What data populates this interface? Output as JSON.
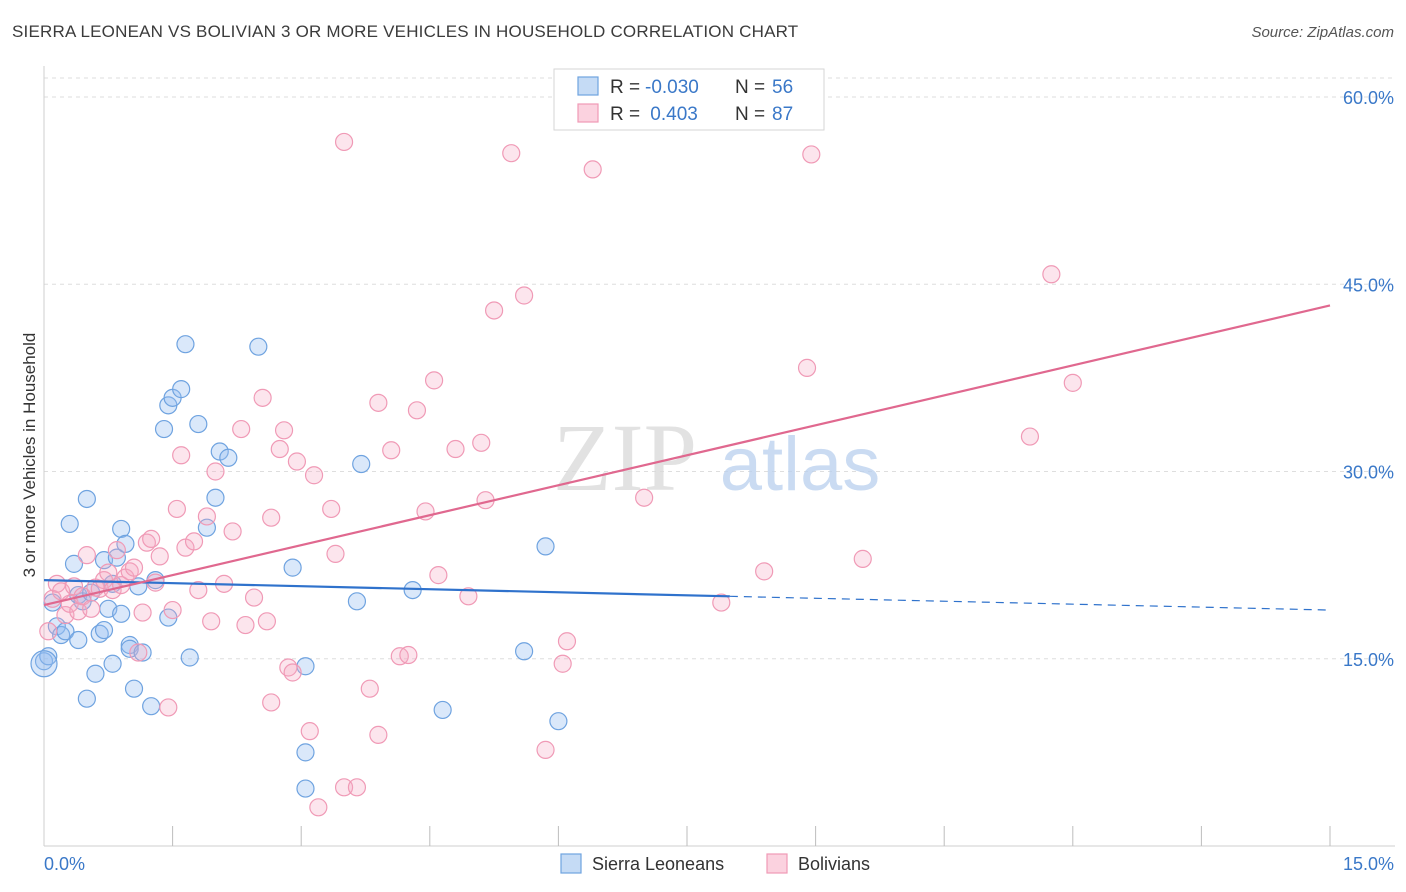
{
  "title": "SIERRA LEONEAN VS BOLIVIAN 3 OR MORE VEHICLES IN HOUSEHOLD CORRELATION CHART",
  "source": "Source: ZipAtlas.com",
  "watermark": {
    "zip": "ZIP",
    "atlas": "atlas"
  },
  "legend_stats": [
    {
      "r_label": "R = ",
      "r_value": "-0.030",
      "n_label": "N = ",
      "n_value": "56",
      "color": "#6fa3e0"
    },
    {
      "r_label": "R = ",
      "r_value": " 0.403",
      "n_label": "N = ",
      "n_value": "87",
      "color": "#f09ab6"
    }
  ],
  "chart_data": {
    "type": "scatter",
    "title": "SIERRA LEONEAN VS BOLIVIAN 3 OR MORE VEHICLES IN HOUSEHOLD CORRELATION CHART",
    "xlabel": "",
    "ylabel": "3 or more Vehicles in Household",
    "xlim": [
      0,
      15
    ],
    "ylim": [
      0,
      60
    ],
    "x_tick_labels": [
      "0.0%",
      "15.0%"
    ],
    "y_tick_labels": [
      "15.0%",
      "30.0%",
      "45.0%",
      "60.0%"
    ],
    "y_ticks": [
      15,
      30,
      45,
      60
    ],
    "grid": true,
    "legend": "bottom-center",
    "series": [
      {
        "name": "Sierra Leoneans",
        "color": "#6fa3e0",
        "trend": {
          "x0": 0,
          "y0": 21.3,
          "x1": 8.0,
          "y1": 20.0,
          "x_end": 15,
          "y_end": 18.9
        },
        "points": [
          [
            0.0,
            14.8
          ],
          [
            0.05,
            15.2
          ],
          [
            0.1,
            19.5
          ],
          [
            0.15,
            17.6
          ],
          [
            0.2,
            16.9
          ],
          [
            0.25,
            17.2
          ],
          [
            0.3,
            25.8
          ],
          [
            0.35,
            22.6
          ],
          [
            0.4,
            20.1
          ],
          [
            0.45,
            19.6
          ],
          [
            0.5,
            27.8
          ],
          [
            0.5,
            11.8
          ],
          [
            0.55,
            20.3
          ],
          [
            0.6,
            13.8
          ],
          [
            0.65,
            17.0
          ],
          [
            0.7,
            22.9
          ],
          [
            0.7,
            17.3
          ],
          [
            0.75,
            19.0
          ],
          [
            0.8,
            14.6
          ],
          [
            0.85,
            23.1
          ],
          [
            0.9,
            18.6
          ],
          [
            0.9,
            25.4
          ],
          [
            0.95,
            24.2
          ],
          [
            1.0,
            16.1
          ],
          [
            1.0,
            15.8
          ],
          [
            1.05,
            12.6
          ],
          [
            1.1,
            20.8
          ],
          [
            1.15,
            15.5
          ],
          [
            1.25,
            11.2
          ],
          [
            1.3,
            21.3
          ],
          [
            1.4,
            33.4
          ],
          [
            1.45,
            35.3
          ],
          [
            1.45,
            18.3
          ],
          [
            1.5,
            35.9
          ],
          [
            1.6,
            36.6
          ],
          [
            1.65,
            40.2
          ],
          [
            1.7,
            15.1
          ],
          [
            1.8,
            33.8
          ],
          [
            1.9,
            25.5
          ],
          [
            2.0,
            27.9
          ],
          [
            2.05,
            31.6
          ],
          [
            2.15,
            31.1
          ],
          [
            2.5,
            40.0
          ],
          [
            2.9,
            22.3
          ],
          [
            3.05,
            14.4
          ],
          [
            3.05,
            4.6
          ],
          [
            3.05,
            7.5
          ],
          [
            3.65,
            19.6
          ],
          [
            3.7,
            30.6
          ],
          [
            4.3,
            20.5
          ],
          [
            4.65,
            10.9
          ],
          [
            5.6,
            15.6
          ],
          [
            5.85,
            24.0
          ],
          [
            6.0,
            10.0
          ],
          [
            0.8,
            21.0
          ],
          [
            0.4,
            16.5
          ]
        ]
      },
      {
        "name": "Bolivians",
        "color": "#f09ab6",
        "trend": {
          "x0": 0,
          "y0": 19.3,
          "x1": 15,
          "y1": 43.3
        },
        "points": [
          [
            0.05,
            17.2
          ],
          [
            0.1,
            19.8
          ],
          [
            0.15,
            21.0
          ],
          [
            0.2,
            20.4
          ],
          [
            0.25,
            18.5
          ],
          [
            0.3,
            19.4
          ],
          [
            0.35,
            20.8
          ],
          [
            0.4,
            18.8
          ],
          [
            0.45,
            20.0
          ],
          [
            0.5,
            23.3
          ],
          [
            0.55,
            19.0
          ],
          [
            0.6,
            20.7
          ],
          [
            0.65,
            20.6
          ],
          [
            0.7,
            21.3
          ],
          [
            0.75,
            21.9
          ],
          [
            0.8,
            20.5
          ],
          [
            0.85,
            23.7
          ],
          [
            0.9,
            20.9
          ],
          [
            0.95,
            21.5
          ],
          [
            1.0,
            22.0
          ],
          [
            1.05,
            22.3
          ],
          [
            1.1,
            15.5
          ],
          [
            1.15,
            18.7
          ],
          [
            1.2,
            24.3
          ],
          [
            1.25,
            24.6
          ],
          [
            1.3,
            21.1
          ],
          [
            1.35,
            23.2
          ],
          [
            1.45,
            11.1
          ],
          [
            1.5,
            18.9
          ],
          [
            1.55,
            27.0
          ],
          [
            1.6,
            31.3
          ],
          [
            1.65,
            23.9
          ],
          [
            1.75,
            24.4
          ],
          [
            1.8,
            20.5
          ],
          [
            1.9,
            26.4
          ],
          [
            1.95,
            18.0
          ],
          [
            2.0,
            30.0
          ],
          [
            2.1,
            21.0
          ],
          [
            2.2,
            25.2
          ],
          [
            2.3,
            33.4
          ],
          [
            2.35,
            17.7
          ],
          [
            2.45,
            19.9
          ],
          [
            2.55,
            35.9
          ],
          [
            2.6,
            18.0
          ],
          [
            2.65,
            26.3
          ],
          [
            2.65,
            11.5
          ],
          [
            2.75,
            31.8
          ],
          [
            2.8,
            33.3
          ],
          [
            2.85,
            14.3
          ],
          [
            2.9,
            13.9
          ],
          [
            2.95,
            30.8
          ],
          [
            3.1,
            9.2
          ],
          [
            3.15,
            29.7
          ],
          [
            3.2,
            3.1
          ],
          [
            3.35,
            27.0
          ],
          [
            3.4,
            23.4
          ],
          [
            3.5,
            56.4
          ],
          [
            3.5,
            4.7
          ],
          [
            3.65,
            4.7
          ],
          [
            3.8,
            12.6
          ],
          [
            3.9,
            35.5
          ],
          [
            3.9,
            8.9
          ],
          [
            4.05,
            31.7
          ],
          [
            4.15,
            15.2
          ],
          [
            4.25,
            15.3
          ],
          [
            4.35,
            34.9
          ],
          [
            4.45,
            26.8
          ],
          [
            4.55,
            37.3
          ],
          [
            4.6,
            21.7
          ],
          [
            4.8,
            31.8
          ],
          [
            4.95,
            20.0
          ],
          [
            5.1,
            32.3
          ],
          [
            5.15,
            27.7
          ],
          [
            5.25,
            42.9
          ],
          [
            5.45,
            55.5
          ],
          [
            5.6,
            44.1
          ],
          [
            5.85,
            7.7
          ],
          [
            6.05,
            14.6
          ],
          [
            6.1,
            16.4
          ],
          [
            6.4,
            54.2
          ],
          [
            7.0,
            27.9
          ],
          [
            7.9,
            19.5
          ],
          [
            8.4,
            22.0
          ],
          [
            8.9,
            38.3
          ],
          [
            8.95,
            55.4
          ],
          [
            9.55,
            23.0
          ],
          [
            11.5,
            32.8
          ],
          [
            11.75,
            45.8
          ],
          [
            12.0,
            37.1
          ]
        ]
      }
    ]
  }
}
